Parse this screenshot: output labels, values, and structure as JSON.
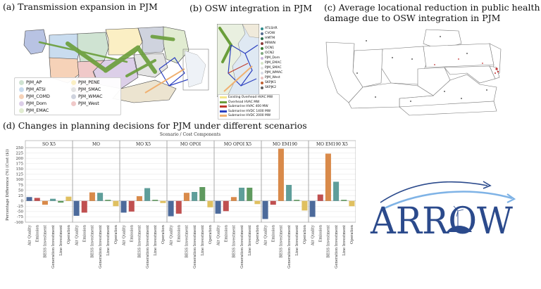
{
  "panels": {
    "a": {
      "title": "(a) Transmission expansion in PJM",
      "legend": [
        {
          "label": "PJM_AP",
          "color": "#cfe3d2"
        },
        {
          "label": "PJM_PENE",
          "color": "#fbefc4"
        },
        {
          "label": "PJM_ATSI",
          "color": "#c9dcef"
        },
        {
          "label": "PJM_SMAC",
          "color": "#e3e3e3"
        },
        {
          "label": "PJM_COMD",
          "color": "#f6d2b8"
        },
        {
          "label": "PJM_WMAC",
          "color": "#cfd3de"
        },
        {
          "label": "PJM_Dom",
          "color": "#dccfe8"
        },
        {
          "label": "PJM_West",
          "color": "#f0c9c9"
        },
        {
          "label": "PJM_EMAC",
          "color": "#e1ecd1"
        }
      ]
    },
    "b": {
      "title": "(b) OSW integration in PJM",
      "points_legend": [
        {
          "label": "ATLSHR",
          "color": "#2e8b8b"
        },
        {
          "label": "CVOW",
          "color": "#556b8e"
        },
        {
          "label": "HMTM",
          "color": "#2f6f4f"
        },
        {
          "label": "MRWN",
          "color": "#8b3a3a"
        },
        {
          "label": "OCN1",
          "color": "#3a7d3a"
        },
        {
          "label": "OCN2",
          "color": "#7fa87f"
        },
        {
          "label": "PJM_Dom",
          "color": "#c9b6dc"
        },
        {
          "label": "PJM_EMAC",
          "color": "#d6e6c8"
        },
        {
          "label": "PJM_SMAC",
          "color": "#e0e0e0"
        },
        {
          "label": "PJM_WMAC",
          "color": "#d8dce6"
        },
        {
          "label": "PJM_West",
          "color": "#e8c4c4"
        },
        {
          "label": "SKPJK1",
          "color": "#c06030"
        },
        {
          "label": "SKPJK2",
          "color": "#606060"
        }
      ],
      "lines_legend": [
        {
          "label": "Existing Overhead HVAC MW",
          "color": "#f5e58a"
        },
        {
          "label": "Overhead HVAC MW",
          "color": "#6a9e3a"
        },
        {
          "label": "Submarine HVAC 400 MW",
          "color": "#c0392b"
        },
        {
          "label": "Submarine HVDC 1400 MW",
          "color": "#2b3fc0"
        },
        {
          "label": "Submarine HVDC 2000 MW",
          "color": "#f0b070"
        }
      ]
    },
    "c": {
      "title_line1": "(c) Average locational reduction in public health",
      "title_line2": "damage due to OSW integration in PJM"
    },
    "d": {
      "title": "(d) Changes in planning decisions for PJM under different scenarios"
    }
  },
  "logo": {
    "text": "ARROW",
    "color": "#2b4a8c",
    "accent": "#7fb3e6"
  },
  "chart_data": {
    "type": "bar",
    "title": "Scenario / Cost Components",
    "ylabel": "Percentage Difference (%) (Cost ($))",
    "ylim": [
      -100,
      250
    ],
    "yticks": [
      -100,
      -75,
      -50,
      -25,
      0,
      25,
      50,
      75,
      100,
      125,
      150,
      175,
      200,
      225,
      250
    ],
    "categories": [
      "Air Quality",
      "Emission",
      "BESS Investment",
      "Generation Investment",
      "Line Investment",
      "Operation"
    ],
    "colors": [
      "#4c6a9b",
      "#c05050",
      "#d98a4a",
      "#5f9e9a",
      "#5f9a5f",
      "#e0c060"
    ],
    "scenarios": [
      {
        "name": "SO X5",
        "values": [
          18,
          14,
          -18,
          10,
          -8,
          20
        ]
      },
      {
        "name": "MO",
        "values": [
          -70,
          -55,
          40,
          38,
          5,
          -25
        ]
      },
      {
        "name": "MO X5",
        "values": [
          -55,
          -50,
          22,
          60,
          5,
          -10
        ]
      },
      {
        "name": "MO OPOI",
        "values": [
          -72,
          -60,
          38,
          42,
          65,
          -30
        ]
      },
      {
        "name": "MO OPOI X5",
        "values": [
          -60,
          -48,
          18,
          62,
          62,
          -15
        ]
      },
      {
        "name": "MO EM190",
        "values": [
          -85,
          -18,
          245,
          75,
          5,
          -45
        ]
      },
      {
        "name": "MO EM190 X5",
        "values": [
          -75,
          30,
          222,
          90,
          5,
          -25
        ]
      }
    ]
  }
}
